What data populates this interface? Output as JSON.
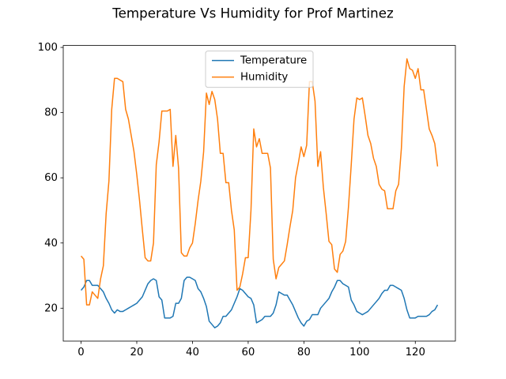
{
  "chart_data": {
    "type": "line",
    "title": "Temperature Vs Humidity for Prof Martinez",
    "x": [
      0,
      1,
      2,
      3,
      4,
      5,
      6,
      7,
      8,
      9,
      10,
      11,
      12,
      13,
      14,
      15,
      16,
      17,
      18,
      19,
      20,
      21,
      22,
      23,
      24,
      25,
      26,
      27,
      28,
      29,
      30,
      31,
      32,
      33,
      34,
      35,
      36,
      37,
      38,
      39,
      40,
      41,
      42,
      43,
      44,
      45,
      46,
      47,
      48,
      49,
      50,
      51,
      52,
      53,
      54,
      55,
      56,
      57,
      58,
      59,
      60,
      61,
      62,
      63,
      64,
      65,
      66,
      67,
      68,
      69,
      70,
      71,
      72,
      73,
      74,
      75,
      76,
      77,
      78,
      79,
      80,
      81,
      82,
      83,
      84,
      85,
      86,
      87,
      88,
      89,
      90,
      91,
      92,
      93,
      94,
      95,
      96,
      97,
      98,
      99,
      100,
      101,
      102,
      103,
      104,
      105,
      106,
      107,
      108,
      109,
      110,
      111,
      112,
      113,
      114,
      115,
      116,
      117,
      118,
      119,
      120,
      121,
      122,
      123,
      124,
      125,
      126,
      127,
      128
    ],
    "series": [
      {
        "name": "Temperature",
        "color": "#1f77b4",
        "values": [
          25.5,
          26.5,
          28.5,
          28.5,
          27,
          27,
          27,
          26,
          25,
          23,
          21.5,
          19.5,
          18.5,
          19.5,
          19,
          19,
          19.5,
          20,
          20.5,
          21,
          21.5,
          22.5,
          23.5,
          25.5,
          27.5,
          28.5,
          29,
          28.5,
          23.5,
          22.5,
          17,
          17,
          17,
          17.5,
          21.5,
          21.5,
          23,
          28.5,
          29.5,
          29.5,
          29,
          28.5,
          26,
          25,
          23,
          20.5,
          16,
          15,
          14,
          14.5,
          15.5,
          17.5,
          17.5,
          18.5,
          19.5,
          21.5,
          23.5,
          26,
          25.5,
          24.5,
          23.5,
          23,
          21,
          15.5,
          16,
          16.5,
          17.5,
          17.5,
          17.5,
          18.5,
          21,
          25,
          24.5,
          24,
          24,
          22.5,
          21,
          19,
          17,
          15.5,
          14.5,
          16,
          16.5,
          18,
          18,
          18,
          20,
          21,
          22,
          23,
          25,
          26.5,
          28.5,
          28.5,
          27.5,
          27,
          26.5,
          22.5,
          21,
          19,
          18.5,
          18,
          18.5,
          19,
          20,
          21,
          22,
          23,
          24.5,
          25.5,
          25.5,
          27,
          27,
          26.5,
          26,
          25.5,
          23,
          19.5,
          17,
          17,
          17,
          17.5,
          17.5,
          17.5,
          17.5,
          18,
          19,
          19.5,
          21
        ]
      },
      {
        "name": "Humidity",
        "color": "#ff7f0e",
        "values": [
          36,
          35,
          21,
          21,
          25,
          24,
          23,
          29,
          33,
          49,
          59,
          81,
          90.5,
          90.5,
          90,
          89.5,
          81,
          78,
          73,
          68,
          61,
          53,
          44,
          35.5,
          34.5,
          34.5,
          40,
          64,
          71,
          80.5,
          80.5,
          80.5,
          81,
          63.5,
          73,
          63,
          37,
          36,
          36,
          38.5,
          40,
          46,
          53,
          59,
          68,
          86,
          82.5,
          86.5,
          84,
          78,
          67.5,
          67.5,
          58.5,
          58.5,
          50,
          44,
          25.5,
          26.5,
          30.5,
          35.5,
          35.5,
          50,
          75,
          69.5,
          72,
          67.5,
          67.5,
          67.5,
          63,
          35,
          29,
          32.5,
          33.5,
          34.5,
          39.5,
          45,
          50,
          60,
          64.5,
          69.5,
          66.5,
          70,
          89.5,
          89.5,
          83.5,
          63.5,
          68,
          57,
          49,
          40.5,
          39.5,
          32,
          31,
          36.5,
          37.5,
          40.5,
          51,
          64,
          78,
          84.5,
          84,
          84.5,
          79,
          73,
          70.5,
          66,
          63.5,
          58,
          56.5,
          56,
          50.5,
          50.5,
          50.5,
          56,
          58,
          69,
          88,
          96.5,
          93.5,
          93,
          90.5,
          93.5,
          87,
          87,
          81,
          75,
          73,
          70.5,
          63.5
        ]
      }
    ],
    "xlim": [
      -6.4,
      134.4
    ],
    "ylim": [
      9.9,
      100.6
    ],
    "xticks": [
      0,
      20,
      40,
      60,
      80,
      100,
      120
    ],
    "yticks": [
      20,
      40,
      60,
      80,
      100
    ],
    "legend": "upper center"
  }
}
